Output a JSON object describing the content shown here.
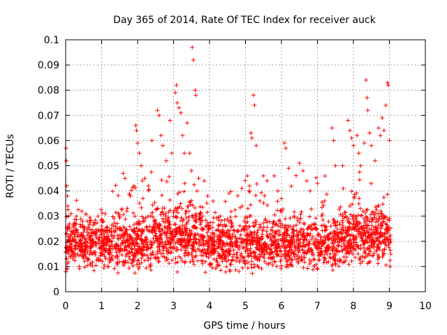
{
  "chart_data": {
    "type": "scatter",
    "title": "Day 365 of 2014, Rate Of TEC Index for receiver auck",
    "xlabel": "GPS time / hours",
    "ylabel": "ROTI / TECUs",
    "xlim": [
      0,
      10
    ],
    "ylim": [
      0,
      0.1
    ],
    "grid": true,
    "marker": "+",
    "color": "#ff0000",
    "x_ticks": [
      "0",
      "1",
      "2",
      "3",
      "4",
      "5",
      "6",
      "7",
      "8",
      "9",
      "10"
    ],
    "y_ticks": [
      "0",
      "0.01",
      "0.02",
      "0.03",
      "0.04",
      "0.05",
      "0.06",
      "0.07",
      "0.08",
      "0.09",
      "0.1"
    ],
    "series": [
      {
        "name": "ROTI",
        "points": [
          [
            0.01,
            0.057
          ],
          [
            0.02,
            0.052
          ],
          [
            0.03,
            0.042
          ],
          [
            0.05,
            0.038
          ],
          [
            0.06,
            0.034
          ],
          [
            0.08,
            0.03
          ],
          [
            0.1,
            0.025
          ],
          [
            0.15,
            0.031
          ],
          [
            0.3,
            0.03
          ],
          [
            0.45,
            0.032
          ],
          [
            0.6,
            0.028
          ],
          [
            0.9,
            0.03
          ],
          [
            1.05,
            0.028
          ],
          [
            1.1,
            0.031
          ],
          [
            1.6,
            0.047
          ],
          [
            1.65,
            0.045
          ],
          [
            1.7,
            0.032
          ],
          [
            1.8,
            0.038
          ],
          [
            1.9,
            0.042
          ],
          [
            1.95,
            0.066
          ],
          [
            1.97,
            0.064
          ],
          [
            2.0,
            0.059
          ],
          [
            2.05,
            0.055
          ],
          [
            2.1,
            0.05
          ],
          [
            2.15,
            0.037
          ],
          [
            2.2,
            0.045
          ],
          [
            2.3,
            0.042
          ],
          [
            2.4,
            0.06
          ],
          [
            2.55,
            0.072
          ],
          [
            2.6,
            0.07
          ],
          [
            2.65,
            0.062
          ],
          [
            2.7,
            0.058
          ],
          [
            2.8,
            0.052
          ],
          [
            2.9,
            0.068
          ],
          [
            2.95,
            0.055
          ],
          [
            3.05,
            0.079
          ],
          [
            3.08,
            0.082
          ],
          [
            3.1,
            0.075
          ],
          [
            3.15,
            0.073
          ],
          [
            3.2,
            0.071
          ],
          [
            3.25,
            0.062
          ],
          [
            3.3,
            0.055
          ],
          [
            3.38,
            0.067
          ],
          [
            3.45,
            0.055
          ],
          [
            3.5,
            0.048
          ],
          [
            3.52,
            0.097
          ],
          [
            3.55,
            0.092
          ],
          [
            3.6,
            0.08
          ],
          [
            3.62,
            0.078
          ],
          [
            3.65,
            0.04
          ],
          [
            3.7,
            0.045
          ],
          [
            3.85,
            0.044
          ],
          [
            3.95,
            0.038
          ],
          [
            4.1,
            0.036
          ],
          [
            4.3,
            0.03
          ],
          [
            4.9,
            0.041
          ],
          [
            5.05,
            0.046
          ],
          [
            5.1,
            0.04
          ],
          [
            5.15,
            0.063
          ],
          [
            5.18,
            0.061
          ],
          [
            5.22,
            0.078
          ],
          [
            5.25,
            0.074
          ],
          [
            5.3,
            0.058
          ],
          [
            5.4,
            0.036
          ],
          [
            5.5,
            0.046
          ],
          [
            5.6,
            0.044
          ],
          [
            5.8,
            0.046
          ],
          [
            5.9,
            0.04
          ],
          [
            6.0,
            0.037
          ],
          [
            6.08,
            0.059
          ],
          [
            6.12,
            0.057
          ],
          [
            6.2,
            0.049
          ],
          [
            6.5,
            0.051
          ],
          [
            6.6,
            0.048
          ],
          [
            6.7,
            0.044
          ],
          [
            6.8,
            0.04
          ],
          [
            7.0,
            0.043
          ],
          [
            7.2,
            0.036
          ],
          [
            7.4,
            0.065
          ],
          [
            7.45,
            0.06
          ],
          [
            7.5,
            0.05
          ],
          [
            7.7,
            0.05
          ],
          [
            7.85,
            0.068
          ],
          [
            7.9,
            0.064
          ],
          [
            7.95,
            0.061
          ],
          [
            8.0,
            0.058
          ],
          [
            8.1,
            0.062
          ],
          [
            8.15,
            0.055
          ],
          [
            8.2,
            0.05
          ],
          [
            8.3,
            0.059
          ],
          [
            8.35,
            0.084
          ],
          [
            8.38,
            0.077
          ],
          [
            8.4,
            0.072
          ],
          [
            8.45,
            0.063
          ],
          [
            8.5,
            0.058
          ],
          [
            8.6,
            0.052
          ],
          [
            8.7,
            0.065
          ],
          [
            8.75,
            0.062
          ],
          [
            8.8,
            0.069
          ],
          [
            8.85,
            0.064
          ],
          [
            8.9,
            0.074
          ],
          [
            8.95,
            0.083
          ],
          [
            8.97,
            0.082
          ],
          [
            9.0,
            0.06
          ]
        ]
      }
    ]
  }
}
